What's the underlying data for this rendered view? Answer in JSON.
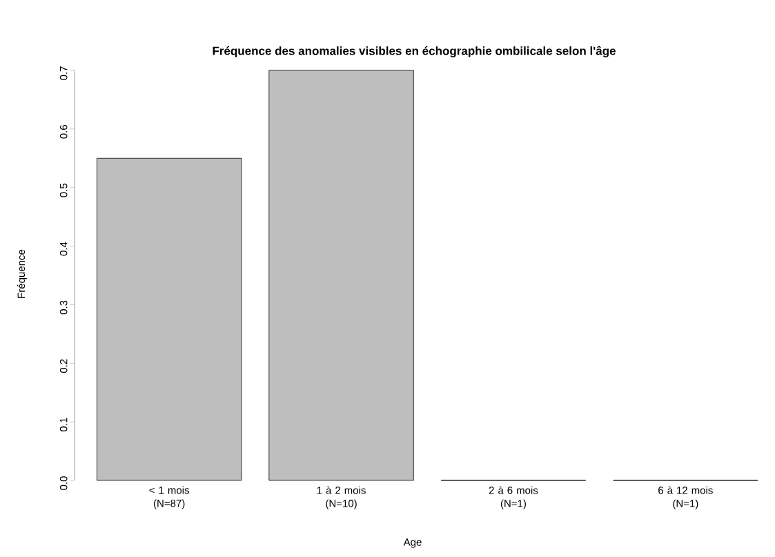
{
  "chart_data": {
    "type": "bar",
    "title": "Fréquence des anomalies visibles en échographie ombilicale selon l'âge",
    "xlabel": "Age",
    "ylabel": "Fréquence",
    "categories": [
      "< 1 mois\n(N=87)",
      "1 à 2 mois\n(N=10)",
      "2 à 6 mois\n(N=1)",
      "6 à 12 mois\n(N=1)"
    ],
    "values": [
      0.55,
      0.7,
      0,
      0
    ],
    "colors": [
      "#bebebe",
      "#bebebe",
      "#000000",
      "#000000"
    ],
    "ylim": [
      0,
      0.7
    ],
    "yticks": [
      {
        "value": 0,
        "label": "0.0"
      },
      0.1,
      0.2,
      0.3,
      0.4,
      0.5,
      0.6,
      0.7
    ]
  }
}
